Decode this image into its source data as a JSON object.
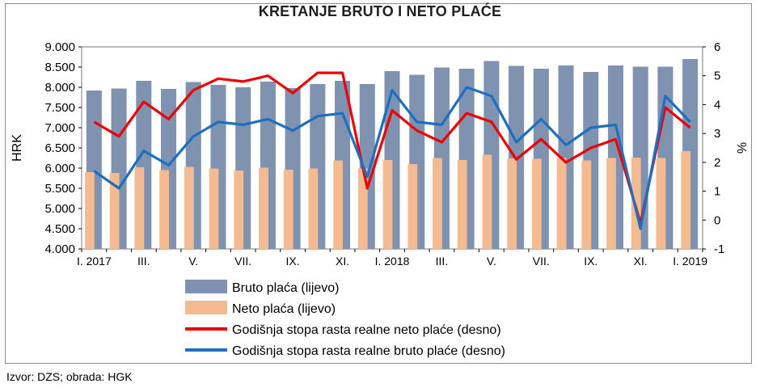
{
  "chart_data": {
    "type": "bar",
    "title": "KRETANJE BRUTO I NETO PLAĆE",
    "ylabel": "HRK",
    "y2label": "%",
    "ylim": [
      4000,
      9000
    ],
    "y2lim": [
      -1,
      6
    ],
    "yticks": [
      "4.000",
      "4.500",
      "5.000",
      "5.500",
      "6.000",
      "6.500",
      "7.000",
      "7.500",
      "8.000",
      "8.500",
      "9.000"
    ],
    "y2ticks": [
      "-1",
      "0",
      "1",
      "2",
      "3",
      "4",
      "5",
      "6"
    ],
    "categories": [
      "I. 2017",
      "II.",
      "III.",
      "IV.",
      "V.",
      "VI.",
      "VII.",
      "VIII.",
      "IX.",
      "X.",
      "XI.",
      "XII.",
      "I. 2018",
      "II.",
      "III.",
      "IV.",
      "V.",
      "VI.",
      "VII.",
      "VIII.",
      "IX.",
      "X.",
      "XI.",
      "XII.",
      "I. 2019"
    ],
    "shown_tick_labels": [
      "I. 2017",
      "III.",
      "V.",
      "VII.",
      "IX.",
      "XI.",
      "I. 2018",
      "III.",
      "V.",
      "VII.",
      "IX.",
      "XI.",
      "I. 2019"
    ],
    "series": [
      {
        "name": "Bruto plaća (lijevo)",
        "kind": "bar",
        "axis": "left",
        "color": "#7f93b1",
        "values": [
          7920,
          7970,
          8160,
          7960,
          8130,
          8060,
          8000,
          8140,
          7980,
          8080,
          8160,
          8080,
          8400,
          8310,
          8490,
          8460,
          8650,
          8530,
          8460,
          8540,
          8380,
          8540,
          8510,
          8510,
          8700
        ]
      },
      {
        "name": "Neto plaća (lijevo)",
        "kind": "bar",
        "axis": "left",
        "color": "#f4bb93",
        "values": [
          5900,
          5880,
          6020,
          5950,
          6030,
          5990,
          5940,
          6010,
          5960,
          5990,
          6190,
          5990,
          6200,
          6100,
          6250,
          6200,
          6330,
          6240,
          6230,
          6250,
          6190,
          6250,
          6260,
          6250,
          6420
        ]
      },
      {
        "name": "Godišnja stopa rasta realne neto plaće (desno)",
        "kind": "line",
        "axis": "right",
        "color": "#ee0000",
        "values": [
          3.4,
          2.9,
          4.1,
          3.5,
          4.5,
          4.9,
          4.8,
          5.0,
          4.4,
          5.1,
          5.1,
          1.1,
          3.8,
          3.1,
          2.7,
          3.7,
          3.4,
          2.1,
          2.8,
          2.0,
          2.5,
          2.8,
          -0.1,
          3.9,
          3.2
        ]
      },
      {
        "name": "Godišnja stopa rasta realne bruto plaće (desno)",
        "kind": "line",
        "axis": "right",
        "color": "#1d6fc1",
        "values": [
          1.7,
          1.1,
          2.4,
          1.9,
          2.9,
          3.4,
          3.3,
          3.5,
          3.1,
          3.6,
          3.7,
          1.5,
          4.5,
          3.4,
          3.3,
          4.6,
          4.3,
          2.7,
          3.5,
          2.6,
          3.2,
          3.3,
          -0.3,
          4.3,
          3.4
        ]
      }
    ],
    "grid": false,
    "legend_position": "bottom"
  },
  "source_text": "Izvor: DZS; obrada: HGK"
}
